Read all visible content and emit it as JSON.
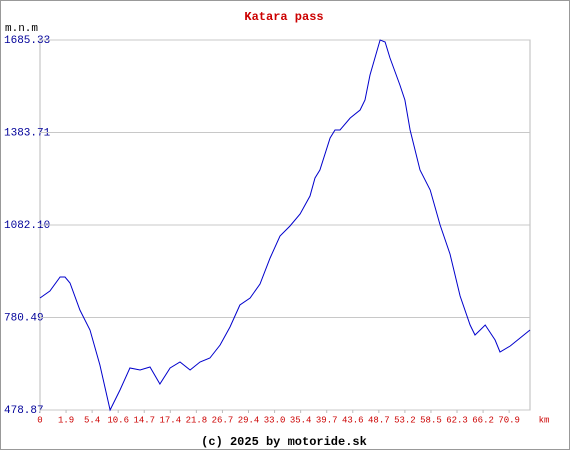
{
  "chart_data": {
    "type": "line",
    "title": "Katara pass",
    "y_label": "m.n.m",
    "x_label": "km",
    "footer": "(c) 2025 by motoride.sk",
    "x": [
      0,
      0.38,
      0.77,
      0.96,
      1.15,
      1.53,
      1.92,
      2.3,
      2.69,
      3.07,
      3.45,
      3.84,
      4.22,
      4.6,
      4.99,
      5.37,
      5.76,
      6.14,
      6.52,
      6.91,
      7.29,
      7.67,
      8.06,
      8.44,
      8.83,
      9.21,
      9.59,
      9.98,
      10.36,
      10.55,
      10.74,
      11.13,
      11.32,
      11.51,
      11.9,
      12.28,
      12.47,
      12.66,
      13.05,
      13.24,
      13.43,
      13.81,
      14.0,
      14.2,
      14.58,
      14.97,
      15.35,
      15.73,
      16.12,
      16.5,
      16.69,
      16.89,
      17.08,
      17.46,
      17.65,
      18.04,
      18.42,
      18.8
    ],
    "series": [
      {
        "color": "#0000cc",
        "values": [
          844.1,
          866.9,
          912.6,
          912.6,
          893.0,
          805.0,
          739.7,
          625.6,
          478.9,
          544.1,
          615.8,
          609.3,
          619.1,
          563.7,
          615.8,
          635.4,
          609.3,
          635.4,
          648.4,
          690.8,
          749.5,
          821.3,
          844.1,
          889.7,
          974.5,
          1046.2,
          1078.9,
          1118.0,
          1176.7,
          1235.4,
          1261.4,
          1365.8,
          1391.9,
          1391.9,
          1431.0,
          1457.1,
          1489.7,
          1571.2,
          1685.33,
          1678.8,
          1626.6,
          1538.6,
          1489.7,
          1391.9,
          1261.4,
          1196.2,
          1082.1,
          987.6,
          850.6,
          756.0,
          723.4,
          739.7,
          756.0,
          707.1,
          668.0,
          687.5,
          713.6,
          739.7
        ]
      }
    ],
    "xlim": [
      0,
      18.8
    ],
    "xticks": [
      0,
      {
        "value": 1,
        "label": "1.9"
      },
      {
        "value": 2,
        "label": "5.4"
      },
      {
        "value": 3,
        "label": "10.6"
      },
      {
        "value": 4,
        "label": "14.7"
      },
      {
        "value": 5,
        "label": "17.4"
      },
      {
        "value": 6,
        "label": "21.8"
      },
      {
        "value": 7,
        "label": "26.7"
      },
      {
        "value": 8,
        "label": "29.4"
      },
      {
        "value": 9,
        "label": "33.0"
      },
      {
        "value": 10,
        "label": "35.4"
      },
      {
        "value": 11,
        "label": "39.7"
      },
      {
        "value": 12,
        "label": "43.6"
      },
      {
        "value": 13,
        "label": "48.7"
      },
      {
        "value": 14,
        "label": "53.2"
      },
      {
        "value": 15,
        "label": "58.5"
      },
      {
        "value": 16,
        "label": "62.3"
      },
      {
        "value": 17,
        "label": "66.2"
      },
      {
        "value": 18,
        "label": "70.9"
      }
    ],
    "ylim": [
      478.87,
      1685.33
    ],
    "yticks": [
      478.87,
      780.49,
      {
        "value": 1082.1,
        "label": "1082.10"
      },
      1383.71,
      1685.33
    ],
    "grid": true
  }
}
